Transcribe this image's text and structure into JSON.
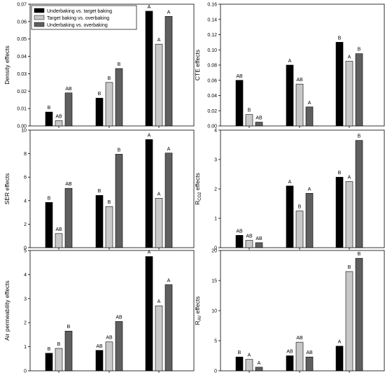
{
  "legend": {
    "entries": [
      {
        "label": "Underbaking vs. target baking",
        "color": "#000000"
      },
      {
        "label": "Target baking vs. overbaking",
        "color": "#c8c8c8"
      },
      {
        "label": "Underbaking vs. overbaking",
        "color": "#5f5f5f"
      }
    ],
    "placement": "top-left (in first panel)"
  },
  "colors": {
    "series1": "#000000",
    "series2": "#c8c8c8",
    "series3": "#5f5f5f"
  },
  "chart_data": [
    {
      "type": "bar",
      "panel": "density",
      "ylabel": "Density effects",
      "ylim": [
        0,
        0.07
      ],
      "yticks": [
        "0.00",
        "0.01",
        "0.02",
        "0.03",
        "0.04",
        "0.05",
        "0.06",
        "0.07"
      ],
      "groups": 3,
      "series": [
        {
          "name": "Underbaking vs. target baking",
          "values": [
            0.008,
            0.016,
            0.066
          ],
          "letters": [
            "B",
            "B",
            "A"
          ]
        },
        {
          "name": "Target baking vs. overbaking",
          "values": [
            0.003,
            0.025,
            0.047
          ],
          "letters": [
            "AB",
            "B",
            "A"
          ]
        },
        {
          "name": "Underbaking vs. overbaking",
          "values": [
            0.019,
            0.033,
            0.063
          ],
          "letters": [
            "AB",
            "B",
            "A"
          ]
        }
      ]
    },
    {
      "type": "bar",
      "panel": "cte",
      "ylabel": "CTE effects",
      "ylim": [
        0,
        0.16
      ],
      "yticks": [
        "0.00",
        "0.02",
        "0.04",
        "0.06",
        "0.08",
        "0.10",
        "0.12",
        "0.14",
        "0.16"
      ],
      "groups": 3,
      "series": [
        {
          "name": "Underbaking vs. target baking",
          "values": [
            0.06,
            0.08,
            0.11
          ],
          "letters": [
            "AB",
            "A",
            "B"
          ]
        },
        {
          "name": "Target baking vs. overbaking",
          "values": [
            0.015,
            0.055,
            0.085
          ],
          "letters": [
            "B",
            "AB",
            "A"
          ]
        },
        {
          "name": "Underbaking vs. overbaking",
          "values": [
            0.005,
            0.025,
            0.095
          ],
          "letters": [
            "AB",
            "A",
            "B"
          ]
        }
      ]
    },
    {
      "type": "bar",
      "panel": "ser",
      "ylabel": "SER effects",
      "ylim": [
        0,
        10
      ],
      "yticks": [
        "0",
        "2",
        "4",
        "6",
        "8",
        "10"
      ],
      "groups": 3,
      "series": [
        {
          "name": "Underbaking vs. target baking",
          "values": [
            3.85,
            4.45,
            9.2
          ],
          "letters": [
            "B",
            "B",
            "A"
          ]
        },
        {
          "name": "Target baking vs. overbaking",
          "values": [
            1.2,
            3.5,
            4.2
          ],
          "letters": [
            "AB",
            "B",
            "A"
          ]
        },
        {
          "name": "Underbaking vs. overbaking",
          "values": [
            5.05,
            7.95,
            8.05
          ],
          "letters": [
            "AB",
            "B",
            "A"
          ]
        }
      ]
    },
    {
      "type": "bar",
      "panel": "rco2",
      "ylabel": "R",
      "ylabel_sub": "CO2",
      "ylabel_tail": " effects",
      "ylim": [
        0,
        4
      ],
      "yticks": [
        "0",
        "1",
        "2",
        "3",
        "4"
      ],
      "groups": 3,
      "series": [
        {
          "name": "Underbaking vs. target baking",
          "values": [
            0.42,
            2.1,
            2.4
          ],
          "letters": [
            "AB",
            "A",
            "B"
          ]
        },
        {
          "name": "Target baking vs. overbaking",
          "values": [
            0.25,
            1.25,
            2.25
          ],
          "letters": [
            "AB",
            "B",
            "A"
          ]
        },
        {
          "name": "Underbaking vs. overbaking",
          "values": [
            0.17,
            1.85,
            3.65
          ],
          "letters": [
            "AB",
            "A",
            "B"
          ]
        }
      ]
    },
    {
      "type": "bar",
      "panel": "air",
      "ylabel": "Air permeability effects",
      "ylim": [
        0,
        5
      ],
      "yticks": [
        "0",
        "1",
        "2",
        "3",
        "4",
        "5"
      ],
      "groups": 3,
      "series": [
        {
          "name": "Underbaking vs. target baking",
          "values": [
            0.73,
            0.85,
            4.75
          ],
          "letters": [
            "B",
            "AB",
            "A"
          ]
        },
        {
          "name": "Target baking vs. overbaking",
          "values": [
            0.93,
            1.2,
            2.7
          ],
          "letters": [
            "B",
            "AB",
            "A"
          ]
        },
        {
          "name": "Underbaking vs. overbaking",
          "values": [
            1.65,
            2.05,
            3.58
          ],
          "letters": [
            "B",
            "AB",
            "A"
          ]
        }
      ]
    },
    {
      "type": "bar",
      "panel": "rav",
      "ylabel": "R",
      "ylabel_sub": "AV",
      "ylabel_tail": " effects",
      "ylim": [
        0,
        20
      ],
      "yticks": [
        "0",
        "5",
        "10",
        "15",
        "20"
      ],
      "groups": 3,
      "series": [
        {
          "name": "Underbaking vs. target baking",
          "values": [
            2.3,
            2.5,
            4.1
          ],
          "letters": [
            "B",
            "AB",
            "A"
          ]
        },
        {
          "name": "Target baking vs. overbaking",
          "values": [
            1.9,
            4.75,
            16.5
          ],
          "letters": [
            "A",
            "AB",
            "B"
          ]
        },
        {
          "name": "Underbaking vs. overbaking",
          "values": [
            0.6,
            2.3,
            18.7
          ],
          "letters": [
            "A",
            "AB",
            "B"
          ]
        }
      ]
    }
  ]
}
